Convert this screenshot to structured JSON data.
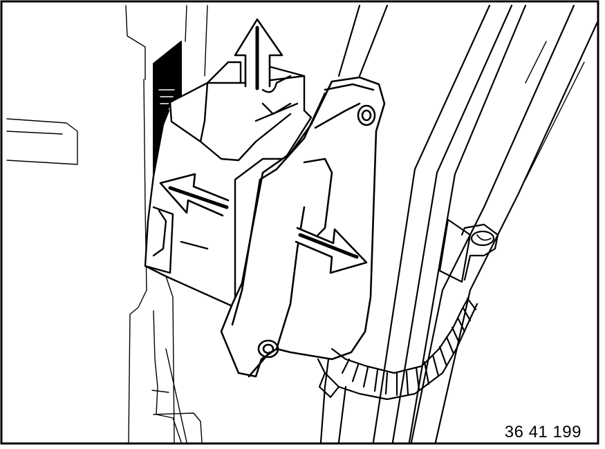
{
  "figure": {
    "reference_number": "36 41 199",
    "line_color": "#000000",
    "background_color": "#ffffff",
    "arrows": [
      {
        "name": "arrow-up",
        "direction": "up"
      },
      {
        "name": "arrow-left",
        "direction": "left"
      },
      {
        "name": "arrow-right-down",
        "direction": "right-down"
      }
    ],
    "parts": [
      {
        "name": "control-unit"
      },
      {
        "name": "connector-plug"
      },
      {
        "name": "mounting-bracket"
      },
      {
        "name": "wiring-harness"
      }
    ]
  }
}
